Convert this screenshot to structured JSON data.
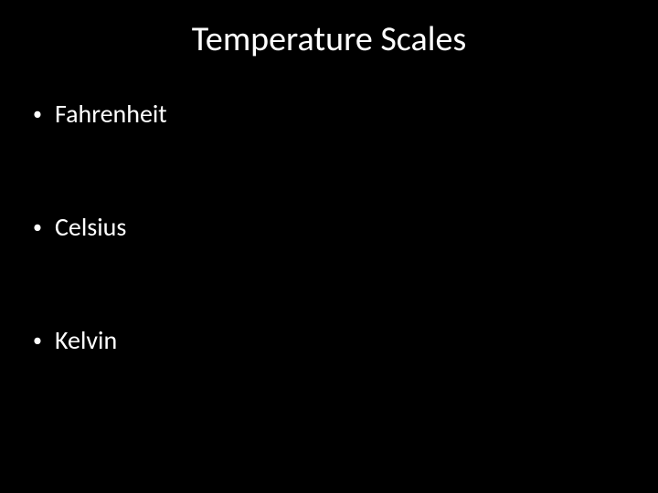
{
  "slide": {
    "title": "Temperature Scales",
    "bullets": [
      {
        "label": "Fahrenheit"
      },
      {
        "label": "Celsius"
      },
      {
        "label": "Kelvin"
      }
    ],
    "background_color": "#000000",
    "text_color": "#ffffff",
    "title_fontsize": 38,
    "body_fontsize": 28,
    "bullet_marker": "•"
  }
}
